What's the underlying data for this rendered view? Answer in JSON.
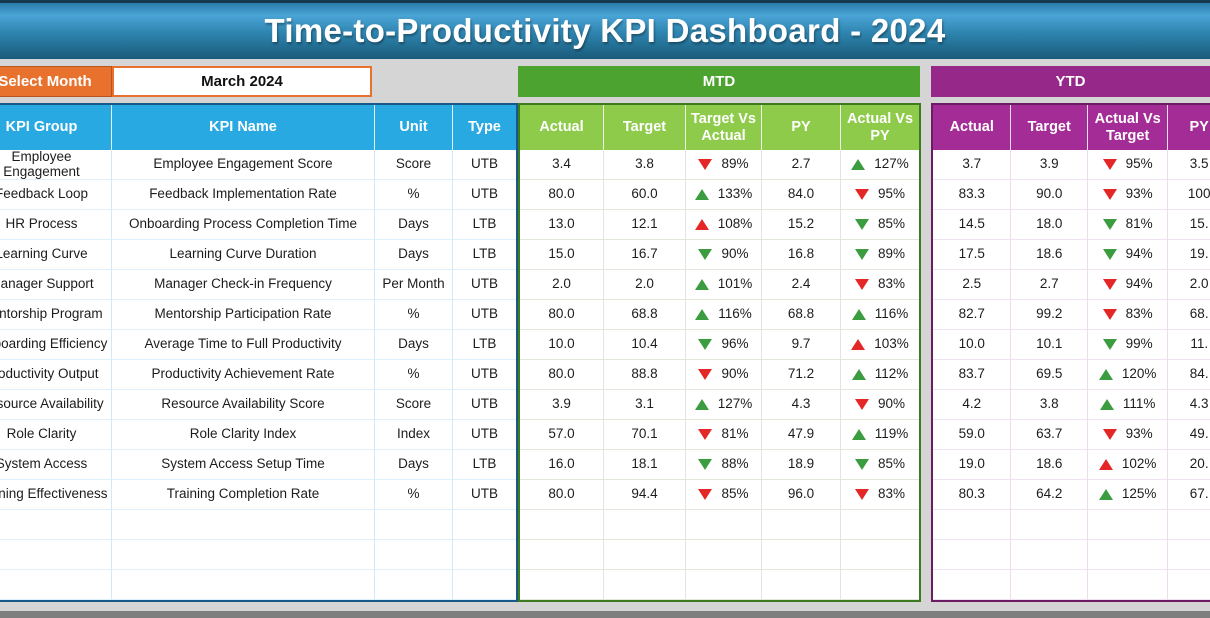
{
  "title": "Time-to-Productivity KPI Dashboard - 2024",
  "controls": {
    "select_month_label": "Select Month",
    "selected_month": "March 2024"
  },
  "left_table": {
    "headers": {
      "group": "KPI Group",
      "name": "KPI Name",
      "unit": "Unit",
      "type": "Type"
    }
  },
  "mtd": {
    "label": "MTD",
    "headers": {
      "actual": "Actual",
      "target": "Target",
      "target_vs_actual": "Target Vs Actual",
      "py": "PY",
      "actual_vs_py": "Actual Vs PY"
    }
  },
  "ytd": {
    "label": "YTD",
    "headers": {
      "actual": "Actual",
      "target": "Target",
      "actual_vs_target": "Actual Vs Target",
      "py": "PY"
    }
  },
  "colors": {
    "banner_blue": "#3a8fc0",
    "header_blue": "#29a9e1",
    "orange": "#e8722d",
    "mtd_green_bar": "#4da32f",
    "mtd_header_green": "#8fcb4a",
    "ytd_purple_bar": "#952888",
    "ytd_header_purple": "#a42c97",
    "arrow_green": "#3c9c40",
    "arrow_red": "#e32726"
  },
  "rows": [
    {
      "group": "Employee Engagement",
      "name": "Employee Engagement Score",
      "unit": "Score",
      "type": "UTB",
      "mtd": {
        "actual": "3.4",
        "target": "3.8",
        "target_vs_actual": {
          "dir": "down",
          "color": "red",
          "value": "89%"
        },
        "py": "2.7",
        "actual_vs_py": {
          "dir": "up",
          "color": "green",
          "value": "127%"
        }
      },
      "ytd": {
        "actual": "3.7",
        "target": "3.9",
        "actual_vs_target": {
          "dir": "down",
          "color": "red",
          "value": "95%"
        },
        "py": "3.5"
      }
    },
    {
      "group": "Feedback Loop",
      "name": "Feedback Implementation Rate",
      "unit": "%",
      "type": "UTB",
      "mtd": {
        "actual": "80.0",
        "target": "60.0",
        "target_vs_actual": {
          "dir": "up",
          "color": "green",
          "value": "133%"
        },
        "py": "84.0",
        "actual_vs_py": {
          "dir": "down",
          "color": "red",
          "value": "95%"
        }
      },
      "ytd": {
        "actual": "83.3",
        "target": "90.0",
        "actual_vs_target": {
          "dir": "down",
          "color": "red",
          "value": "93%"
        },
        "py": "100"
      }
    },
    {
      "group": "HR Process",
      "name": "Onboarding Process Completion Time",
      "unit": "Days",
      "type": "LTB",
      "mtd": {
        "actual": "13.0",
        "target": "12.1",
        "target_vs_actual": {
          "dir": "up",
          "color": "red",
          "value": "108%"
        },
        "py": "15.2",
        "actual_vs_py": {
          "dir": "down",
          "color": "green",
          "value": "85%"
        }
      },
      "ytd": {
        "actual": "14.5",
        "target": "18.0",
        "actual_vs_target": {
          "dir": "down",
          "color": "green",
          "value": "81%"
        },
        "py": "15."
      }
    },
    {
      "group": "Learning Curve",
      "name": "Learning Curve Duration",
      "unit": "Days",
      "type": "LTB",
      "mtd": {
        "actual": "15.0",
        "target": "16.7",
        "target_vs_actual": {
          "dir": "down",
          "color": "green",
          "value": "90%"
        },
        "py": "16.8",
        "actual_vs_py": {
          "dir": "down",
          "color": "green",
          "value": "89%"
        }
      },
      "ytd": {
        "actual": "17.5",
        "target": "18.6",
        "actual_vs_target": {
          "dir": "down",
          "color": "green",
          "value": "94%"
        },
        "py": "19."
      }
    },
    {
      "group": "Manager Support",
      "name": "Manager Check-in Frequency",
      "unit": "Per Month",
      "type": "UTB",
      "mtd": {
        "actual": "2.0",
        "target": "2.0",
        "target_vs_actual": {
          "dir": "up",
          "color": "green",
          "value": "101%"
        },
        "py": "2.4",
        "actual_vs_py": {
          "dir": "down",
          "color": "red",
          "value": "83%"
        }
      },
      "ytd": {
        "actual": "2.5",
        "target": "2.7",
        "actual_vs_target": {
          "dir": "down",
          "color": "red",
          "value": "94%"
        },
        "py": "2.0"
      }
    },
    {
      "group": "Mentorship Program",
      "name": "Mentorship Participation Rate",
      "unit": "%",
      "type": "UTB",
      "mtd": {
        "actual": "80.0",
        "target": "68.8",
        "target_vs_actual": {
          "dir": "up",
          "color": "green",
          "value": "116%"
        },
        "py": "68.8",
        "actual_vs_py": {
          "dir": "up",
          "color": "green",
          "value": "116%"
        }
      },
      "ytd": {
        "actual": "82.7",
        "target": "99.2",
        "actual_vs_target": {
          "dir": "down",
          "color": "red",
          "value": "83%"
        },
        "py": "68."
      }
    },
    {
      "group": "Onboarding Efficiency",
      "name": "Average Time to Full Productivity",
      "unit": "Days",
      "type": "LTB",
      "mtd": {
        "actual": "10.0",
        "target": "10.4",
        "target_vs_actual": {
          "dir": "down",
          "color": "green",
          "value": "96%"
        },
        "py": "9.7",
        "actual_vs_py": {
          "dir": "up",
          "color": "red",
          "value": "103%"
        }
      },
      "ytd": {
        "actual": "10.0",
        "target": "10.1",
        "actual_vs_target": {
          "dir": "down",
          "color": "green",
          "value": "99%"
        },
        "py": "11."
      }
    },
    {
      "group": "Productivity Output",
      "name": "Productivity Achievement Rate",
      "unit": "%",
      "type": "UTB",
      "mtd": {
        "actual": "80.0",
        "target": "88.8",
        "target_vs_actual": {
          "dir": "down",
          "color": "red",
          "value": "90%"
        },
        "py": "71.2",
        "actual_vs_py": {
          "dir": "up",
          "color": "green",
          "value": "112%"
        }
      },
      "ytd": {
        "actual": "83.7",
        "target": "69.5",
        "actual_vs_target": {
          "dir": "up",
          "color": "green",
          "value": "120%"
        },
        "py": "84."
      }
    },
    {
      "group": "Resource Availability",
      "name": "Resource Availability Score",
      "unit": "Score",
      "type": "UTB",
      "mtd": {
        "actual": "3.9",
        "target": "3.1",
        "target_vs_actual": {
          "dir": "up",
          "color": "green",
          "value": "127%"
        },
        "py": "4.3",
        "actual_vs_py": {
          "dir": "down",
          "color": "red",
          "value": "90%"
        }
      },
      "ytd": {
        "actual": "4.2",
        "target": "3.8",
        "actual_vs_target": {
          "dir": "up",
          "color": "green",
          "value": "111%"
        },
        "py": "4.3"
      }
    },
    {
      "group": "Role Clarity",
      "name": "Role Clarity Index",
      "unit": "Index",
      "type": "UTB",
      "mtd": {
        "actual": "57.0",
        "target": "70.1",
        "target_vs_actual": {
          "dir": "down",
          "color": "red",
          "value": "81%"
        },
        "py": "47.9",
        "actual_vs_py": {
          "dir": "up",
          "color": "green",
          "value": "119%"
        }
      },
      "ytd": {
        "actual": "59.0",
        "target": "63.7",
        "actual_vs_target": {
          "dir": "down",
          "color": "red",
          "value": "93%"
        },
        "py": "49."
      }
    },
    {
      "group": "System Access",
      "name": "System Access Setup Time",
      "unit": "Days",
      "type": "LTB",
      "mtd": {
        "actual": "16.0",
        "target": "18.1",
        "target_vs_actual": {
          "dir": "down",
          "color": "green",
          "value": "88%"
        },
        "py": "18.9",
        "actual_vs_py": {
          "dir": "down",
          "color": "green",
          "value": "85%"
        }
      },
      "ytd": {
        "actual": "19.0",
        "target": "18.6",
        "actual_vs_target": {
          "dir": "up",
          "color": "red",
          "value": "102%"
        },
        "py": "20."
      }
    },
    {
      "group": "Training Effectiveness",
      "name": "Training Completion Rate",
      "unit": "%",
      "type": "UTB",
      "mtd": {
        "actual": "80.0",
        "target": "94.4",
        "target_vs_actual": {
          "dir": "down",
          "color": "red",
          "value": "85%"
        },
        "py": "96.0",
        "actual_vs_py": {
          "dir": "down",
          "color": "red",
          "value": "83%"
        }
      },
      "ytd": {
        "actual": "80.3",
        "target": "64.2",
        "actual_vs_target": {
          "dir": "up",
          "color": "green",
          "value": "125%"
        },
        "py": "67."
      }
    }
  ],
  "empty_row_count": 3
}
